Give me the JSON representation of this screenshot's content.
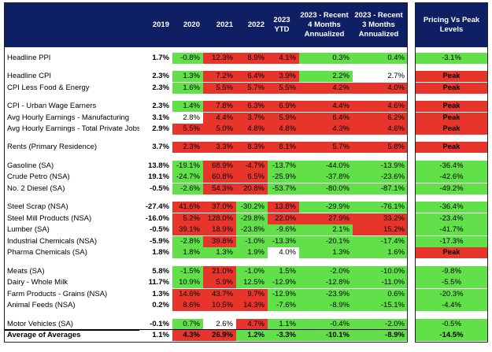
{
  "header": {
    "columns": [
      "2019",
      "2020",
      "2021",
      "2022",
      "2023 YTD",
      "2023 - Recent 4 Months Annualized",
      "2023 - Recent 3 Months Annualized"
    ],
    "peak_column": "Pricing Vs Peak Levels"
  },
  "palette": {
    "green": "#62e04a",
    "red": "#e8352c",
    "white": "#ffffff"
  },
  "groups": [
    {
      "rows": [
        {
          "label": "Headline PPI",
          "values": [
            "1.7%",
            "-0.8%",
            "12.3%",
            "8.9%",
            "4.1%",
            "0.3%",
            "0.4%"
          ],
          "colors": [
            "green",
            "red",
            "red",
            "red",
            "green",
            "green"
          ],
          "peak": "-3.1%",
          "peak_color": "green"
        }
      ]
    },
    {
      "rows": [
        {
          "label": "Headline CPI",
          "values": [
            "2.3%",
            "1.3%",
            "7.2%",
            "6.4%",
            "3.9%",
            "2.2%",
            "2.7%"
          ],
          "colors": [
            "green",
            "red",
            "red",
            "red",
            "green",
            "white"
          ],
          "peak": "Peak",
          "peak_color": "red"
        },
        {
          "label": "CPI Less Food & Energy",
          "values": [
            "2.3%",
            "1.6%",
            "5.5%",
            "5.7%",
            "5.5%",
            "4.2%",
            "4.0%"
          ],
          "colors": [
            "green",
            "red",
            "red",
            "red",
            "red",
            "red"
          ],
          "peak": "Peak",
          "peak_color": "red"
        }
      ]
    },
    {
      "rows": [
        {
          "label": "CPI - Urban Wage Earners",
          "values": [
            "2.3%",
            "1.4%",
            "7.8%",
            "6.3%",
            "6.9%",
            "4.4%",
            "4.6%"
          ],
          "colors": [
            "green",
            "red",
            "red",
            "red",
            "red",
            "red"
          ],
          "peak": "Peak",
          "peak_color": "red"
        },
        {
          "label": "Avg Hourly Earnings - Manufacturing",
          "values": [
            "3.1%",
            "2.8%",
            "4.4%",
            "3.7%",
            "5.9%",
            "6.4%",
            "6.2%"
          ],
          "colors": [
            "white",
            "red",
            "red",
            "red",
            "red",
            "red"
          ],
          "peak": "Peak",
          "peak_color": "red"
        },
        {
          "label": "Avg Hourly Earnings - Total Private Jobs",
          "values": [
            "2.9%",
            "5.5%",
            "5.0%",
            "4.8%",
            "4.8%",
            "4.3%",
            "4.6%"
          ],
          "colors": [
            "red",
            "red",
            "red",
            "red",
            "red",
            "red"
          ],
          "peak": "Peak",
          "peak_color": "red"
        }
      ]
    },
    {
      "rows": [
        {
          "label": "Rents (Primary Residence)",
          "values": [
            "3.7%",
            "2.3%",
            "3.3%",
            "8.3%",
            "8.1%",
            "5.7%",
            "5.8%"
          ],
          "colors": [
            "red",
            "red",
            "red",
            "red",
            "red",
            "red"
          ],
          "peak": "Peak",
          "peak_color": "red"
        }
      ]
    },
    {
      "rows": [
        {
          "label": "Gasoline (SA)",
          "values": [
            "13.8%",
            "-19.1%",
            "68.9%",
            "-4.7%",
            "-13.7%",
            "-44.0%",
            "-13.9%"
          ],
          "colors": [
            "green",
            "red",
            "red",
            "green",
            "green",
            "green"
          ],
          "peak": "-36.4%",
          "peak_color": "green"
        },
        {
          "label": "Crude Petro (NSA)",
          "values": [
            "19.1%",
            "-24.7%",
            "60.8%",
            "6.5%",
            "-25.9%",
            "-37.8%",
            "-23.6%"
          ],
          "colors": [
            "green",
            "red",
            "red",
            "green",
            "green",
            "green"
          ],
          "peak": "-42.6%",
          "peak_color": "green"
        },
        {
          "label": "No. 2 Diesel (SA)",
          "values": [
            "-0.5%",
            "-2.6%",
            "54.3%",
            "20.8%",
            "-53.7%",
            "-80.0%",
            "-87.1%"
          ],
          "colors": [
            "green",
            "red",
            "red",
            "green",
            "green",
            "green"
          ],
          "peak": "-49.2%",
          "peak_color": "green"
        }
      ]
    },
    {
      "rows": [
        {
          "label": "Steel Scrap (NSA)",
          "values": [
            "-27.4%",
            "41.6%",
            "37.0%",
            "-30.2%",
            "13.8%",
            "-29.9%",
            "-76.1%"
          ],
          "colors": [
            "red",
            "red",
            "green",
            "red",
            "green",
            "green"
          ],
          "peak": "-36.4%",
          "peak_color": "green"
        },
        {
          "label": "Steel Mill Products (NSA)",
          "values": [
            "-16.0%",
            "5.2%",
            "128.0%",
            "-29.8%",
            "22.0%",
            "27.9%",
            "33.2%"
          ],
          "colors": [
            "red",
            "red",
            "green",
            "red",
            "red",
            "red"
          ],
          "peak": "-23.4%",
          "peak_color": "green"
        },
        {
          "label": "Lumber (SA)",
          "values": [
            "-0.5%",
            "39.1%",
            "18.9%",
            "-23.8%",
            "-9.6%",
            "2.1%",
            "15.2%"
          ],
          "colors": [
            "red",
            "red",
            "green",
            "green",
            "green",
            "red"
          ],
          "peak": "-41.7%",
          "peak_color": "green"
        },
        {
          "label": "Industrial Chemicals (NSA)",
          "values": [
            "-5.9%",
            "-2.8%",
            "39.8%",
            "-1.0%",
            "-13.3%",
            "-20.1%",
            "-17.4%"
          ],
          "colors": [
            "green",
            "red",
            "green",
            "green",
            "green",
            "green"
          ],
          "peak": "-17.3%",
          "peak_color": "green"
        },
        {
          "label": "Pharma Chemicals (SA)",
          "values": [
            "1.8%",
            "1.8%",
            "1.3%",
            "1.9%",
            "4.0%",
            "1.3%",
            "1.6%"
          ],
          "colors": [
            "green",
            "green",
            "green",
            "white",
            "green",
            "green"
          ],
          "peak": "Peak",
          "peak_color": "red"
        }
      ]
    },
    {
      "rows": [
        {
          "label": "Meats (SA)",
          "values": [
            "5.8%",
            "-1.5%",
            "21.0%",
            "-1.0%",
            "1.5%",
            "-2.0%",
            "-10.0%"
          ],
          "colors": [
            "green",
            "red",
            "green",
            "green",
            "green",
            "green"
          ],
          "peak": "-9.8%",
          "peak_color": "green"
        },
        {
          "label": "Dairy - Whole Milk",
          "values": [
            "11.7%",
            "10.9%",
            "5.9%",
            "12.5%",
            "-12.9%",
            "-12.8%",
            "-11.0%"
          ],
          "colors": [
            "green",
            "red",
            "green",
            "green",
            "green",
            "green"
          ],
          "peak": "-5.5%",
          "peak_color": "green"
        },
        {
          "label": "Farm Products - Grains (NSA)",
          "values": [
            "1.3%",
            "14.6%",
            "43.7%",
            "9.7%",
            "-12.9%",
            "-23.9%",
            "0.6%"
          ],
          "colors": [
            "red",
            "red",
            "red",
            "green",
            "green",
            "green"
          ],
          "peak": "-20.3%",
          "peak_color": "green"
        },
        {
          "label": "Animal Feeds (NSA)",
          "values": [
            "0.2%",
            "8.6%",
            "10.5%",
            "14.3%",
            "-7.6%",
            "-8.9%",
            "-15.1%"
          ],
          "colors": [
            "red",
            "red",
            "red",
            "green",
            "green",
            "green"
          ],
          "peak": "-4.4%",
          "peak_color": "green"
        }
      ]
    },
    {
      "rows": [
        {
          "label": "Motor Vehicles (SA)",
          "values": [
            "-0.1%",
            "0.7%",
            "2.6%",
            "4.7%",
            "1.1%",
            "-0.4%",
            "-2.0%"
          ],
          "colors": [
            "green",
            "white",
            "red",
            "green",
            "green",
            "green"
          ],
          "peak": "-0.5%",
          "peak_color": "green"
        },
        {
          "label": "Average of Averages",
          "values": [
            "1.1%",
            "4.3%",
            "26.9%",
            "1.2%",
            "-3.3%",
            "-10.1%",
            "-8.9%"
          ],
          "colors": [
            "red",
            "red",
            "green",
            "green",
            "green",
            "green"
          ],
          "peak": "-14.5%",
          "peak_color": "green",
          "bold": true
        }
      ]
    }
  ]
}
